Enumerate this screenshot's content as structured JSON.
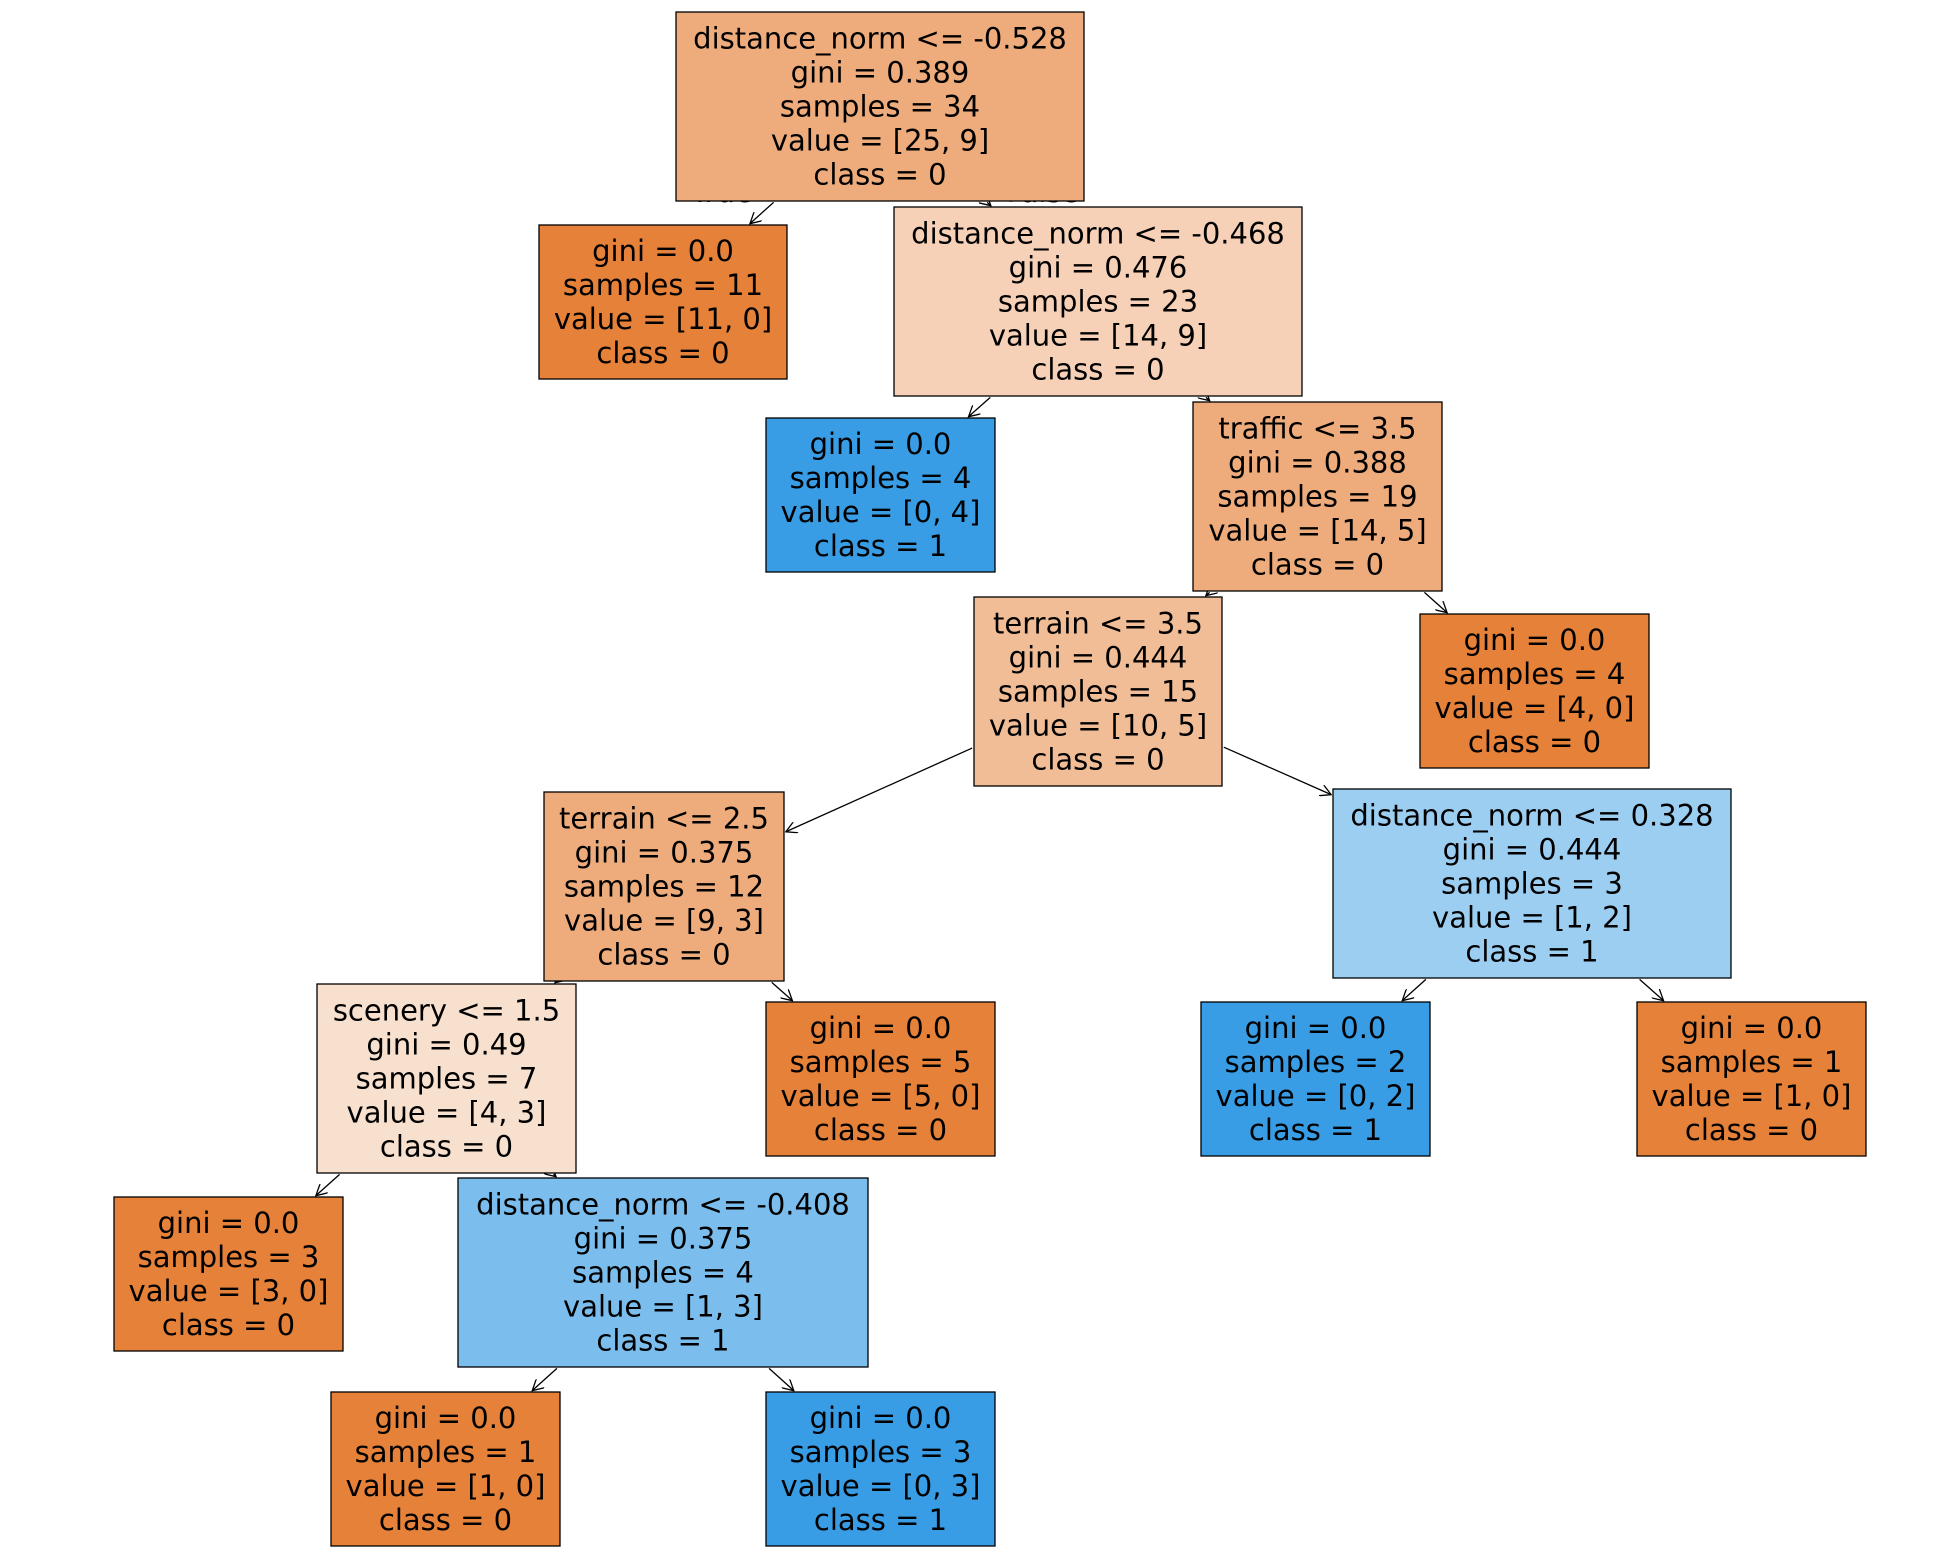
{
  "tree": {
    "colors": {
      "orange_strong": "#e58139",
      "orange_medium": "#eeac7c",
      "orange_light": "#f1bd97",
      "orange_pale": "#f6d1b7",
      "orange_faint": "#f8e0ce",
      "blue_strong": "#399de5",
      "blue_medium": "#7bbeee",
      "blue_light": "#9ccef2"
    },
    "edge_labels": {
      "left": "True",
      "right": "False"
    },
    "nodes": [
      {
        "id": "n0",
        "fill": "orange_medium",
        "lines": [
          "distance_norm <= -0.528",
          "gini = 0.389",
          "samples = 34",
          "value = [25, 9]",
          "class = 0"
        ]
      },
      {
        "id": "n1",
        "fill": "orange_strong",
        "lines": [
          "gini = 0.0",
          "samples = 11",
          "value = [11, 0]",
          "class = 0"
        ]
      },
      {
        "id": "n2",
        "fill": "orange_pale",
        "lines": [
          "distance_norm <= -0.468",
          "gini = 0.476",
          "samples = 23",
          "value = [14, 9]",
          "class = 0"
        ]
      },
      {
        "id": "n3",
        "fill": "blue_strong",
        "lines": [
          "gini = 0.0",
          "samples = 4",
          "value = [0, 4]",
          "class = 1"
        ]
      },
      {
        "id": "n4",
        "fill": "orange_medium",
        "lines": [
          "traffic <= 3.5",
          "gini = 0.388",
          "samples = 19",
          "value = [14, 5]",
          "class = 0"
        ]
      },
      {
        "id": "n5",
        "fill": "orange_light",
        "lines": [
          "terrain <= 3.5",
          "gini = 0.444",
          "samples = 15",
          "value = [10, 5]",
          "class = 0"
        ]
      },
      {
        "id": "n6",
        "fill": "orange_strong",
        "lines": [
          "gini = 0.0",
          "samples = 4",
          "value = [4, 0]",
          "class = 0"
        ]
      },
      {
        "id": "n7",
        "fill": "orange_medium",
        "lines": [
          "terrain <= 2.5",
          "gini = 0.375",
          "samples = 12",
          "value = [9, 3]",
          "class = 0"
        ]
      },
      {
        "id": "n8",
        "fill": "blue_light",
        "lines": [
          "distance_norm <= 0.328",
          "gini = 0.444",
          "samples = 3",
          "value = [1, 2]",
          "class = 1"
        ]
      },
      {
        "id": "n9",
        "fill": "orange_faint",
        "lines": [
          "scenery <= 1.5",
          "gini = 0.49",
          "samples = 7",
          "value = [4, 3]",
          "class = 0"
        ]
      },
      {
        "id": "n10",
        "fill": "orange_strong",
        "lines": [
          "gini = 0.0",
          "samples = 5",
          "value = [5, 0]",
          "class = 0"
        ]
      },
      {
        "id": "n11",
        "fill": "blue_strong",
        "lines": [
          "gini = 0.0",
          "samples = 2",
          "value = [0, 2]",
          "class = 1"
        ]
      },
      {
        "id": "n12",
        "fill": "orange_strong",
        "lines": [
          "gini = 0.0",
          "samples = 1",
          "value = [1, 0]",
          "class = 0"
        ]
      },
      {
        "id": "n13",
        "fill": "orange_strong",
        "lines": [
          "gini = 0.0",
          "samples = 3",
          "value = [3, 0]",
          "class = 0"
        ]
      },
      {
        "id": "n14",
        "fill": "blue_medium",
        "lines": [
          "distance_norm <= -0.408",
          "gini = 0.375",
          "samples = 4",
          "value = [1, 3]",
          "class = 1"
        ]
      },
      {
        "id": "n15",
        "fill": "orange_strong",
        "lines": [
          "gini = 0.0",
          "samples = 1",
          "value = [1, 0]",
          "class = 0"
        ]
      },
      {
        "id": "n16",
        "fill": "blue_strong",
        "lines": [
          "gini = 0.0",
          "samples = 3",
          "value = [0, 3]",
          "class = 1"
        ]
      }
    ],
    "edges": [
      [
        "n0",
        "n1"
      ],
      [
        "n0",
        "n2"
      ],
      [
        "n2",
        "n3"
      ],
      [
        "n2",
        "n4"
      ],
      [
        "n4",
        "n5"
      ],
      [
        "n4",
        "n6"
      ],
      [
        "n5",
        "n7"
      ],
      [
        "n5",
        "n8"
      ],
      [
        "n7",
        "n9"
      ],
      [
        "n7",
        "n10"
      ],
      [
        "n8",
        "n11"
      ],
      [
        "n8",
        "n12"
      ],
      [
        "n9",
        "n13"
      ],
      [
        "n9",
        "n14"
      ],
      [
        "n14",
        "n15"
      ],
      [
        "n14",
        "n16"
      ]
    ]
  }
}
